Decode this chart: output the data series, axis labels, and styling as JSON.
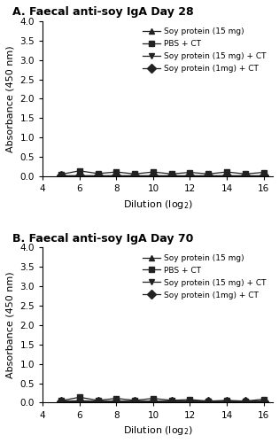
{
  "panel_A_title": "A. Faecal anti-soy IgA Day 28",
  "panel_B_title": "B. Faecal anti-soy IgA Day 70",
  "xlabel": "Dilution (log$_2$)",
  "ylabel": "Absorbance (450 nm)",
  "x": [
    5,
    6,
    7,
    8,
    9,
    10,
    11,
    12,
    13,
    14,
    15,
    16
  ],
  "xlim": [
    4,
    16.5
  ],
  "xticks": [
    4,
    6,
    8,
    10,
    12,
    14,
    16
  ],
  "ylim": [
    0,
    4.0
  ],
  "yticks": [
    0.0,
    0.5,
    1.0,
    1.5,
    2.0,
    2.5,
    3.0,
    3.5,
    4.0
  ],
  "series": [
    {
      "label": "Soy protein (15 mg)",
      "marker": "^",
      "color": "#222222",
      "A_values": [
        0.03,
        0.03,
        0.03,
        0.03,
        0.03,
        0.03,
        0.03,
        0.03,
        0.03,
        0.03,
        0.03,
        0.03
      ],
      "B_values": [
        0.03,
        0.03,
        0.03,
        0.03,
        0.03,
        0.03,
        0.03,
        0.03,
        0.03,
        0.03,
        0.03,
        0.03
      ]
    },
    {
      "label": "PBS + CT",
      "marker": "s",
      "color": "#222222",
      "A_values": [
        0.05,
        0.14,
        0.07,
        0.11,
        0.06,
        0.11,
        0.06,
        0.1,
        0.06,
        0.11,
        0.06,
        0.1
      ],
      "B_values": [
        0.05,
        0.14,
        0.06,
        0.11,
        0.06,
        0.11,
        0.06,
        0.08,
        0.04,
        0.06,
        0.04,
        0.09
      ]
    },
    {
      "label": "Soy protein (15 mg) + CT",
      "marker": "v",
      "color": "#222222",
      "A_values": [
        0.03,
        0.03,
        0.03,
        0.03,
        0.03,
        0.03,
        0.03,
        0.03,
        0.03,
        0.03,
        0.03,
        0.03
      ],
      "B_values": [
        0.04,
        0.05,
        0.04,
        0.04,
        0.04,
        0.04,
        0.04,
        0.04,
        0.04,
        0.04,
        0.04,
        0.04
      ]
    },
    {
      "label": "Soy protein (1mg) + CT",
      "marker": "D",
      "color": "#222222",
      "A_values": [
        0.03,
        0.03,
        0.03,
        0.03,
        0.03,
        0.03,
        0.03,
        0.03,
        0.03,
        0.03,
        0.03,
        0.03
      ],
      "B_values": [
        0.03,
        0.03,
        0.03,
        0.03,
        0.03,
        0.03,
        0.03,
        0.03,
        0.03,
        0.03,
        0.03,
        0.03
      ]
    }
  ],
  "legend_fontsize": 6.5,
  "axis_fontsize": 8,
  "title_fontsize": 9,
  "tick_fontsize": 7.5,
  "linewidth": 0.9,
  "markersize": 5
}
